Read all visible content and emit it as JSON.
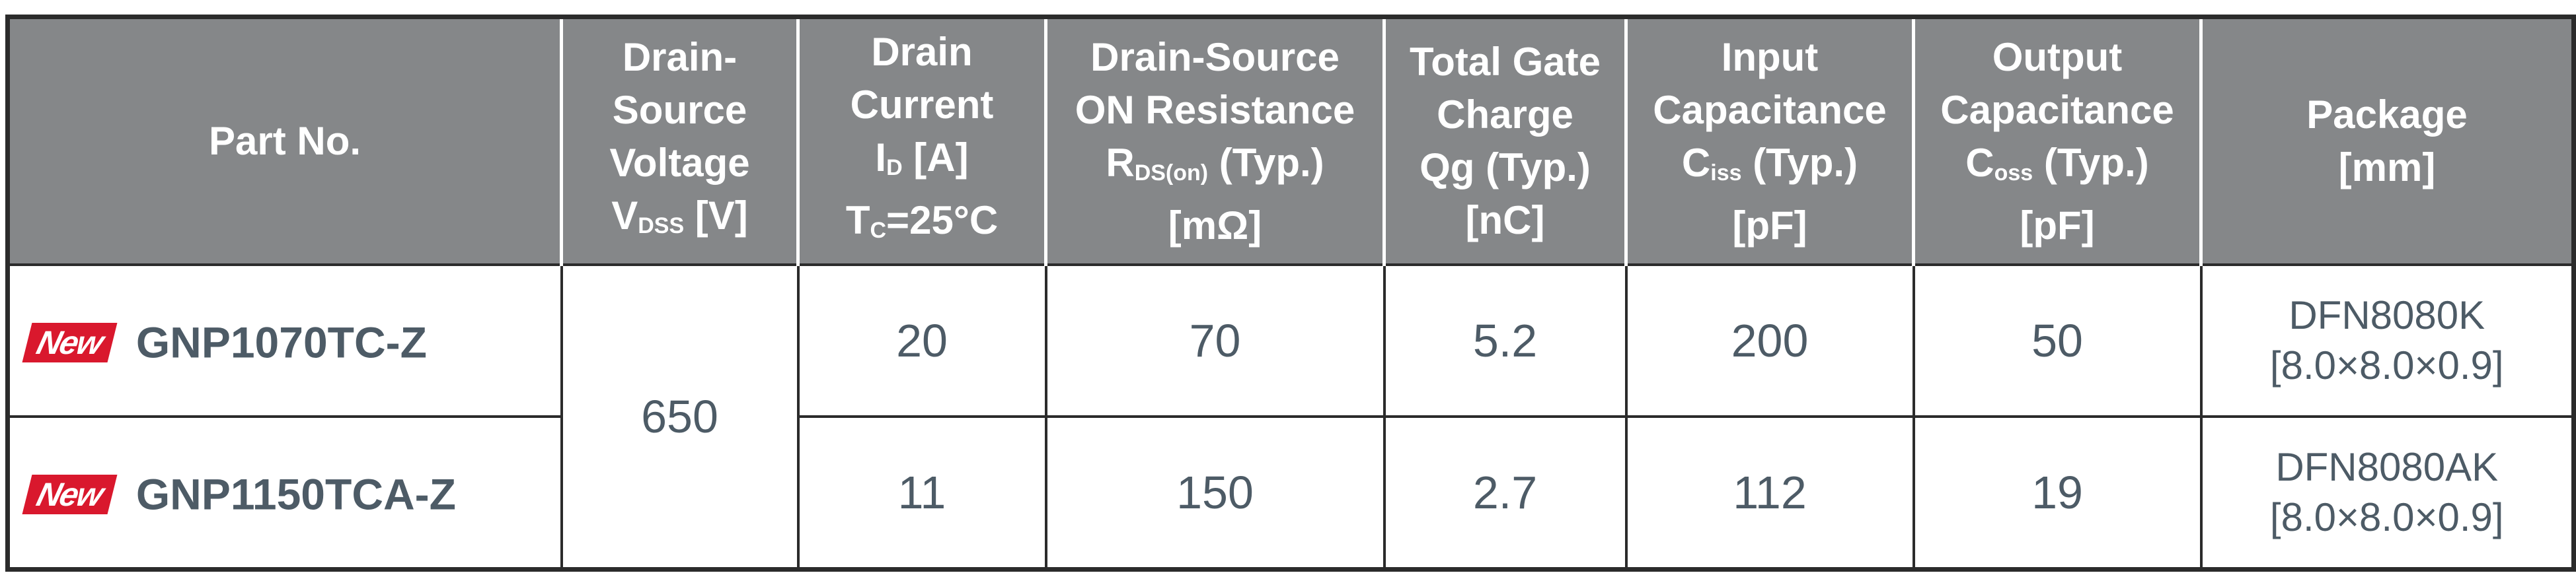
{
  "table": {
    "header": [
      [
        [
          {
            "text": "Part No."
          }
        ]
      ],
      [
        [
          {
            "text": "Drain-"
          }
        ],
        [
          {
            "text": "Source"
          }
        ],
        [
          {
            "text": "Voltage"
          }
        ],
        [
          {
            "text": "V"
          },
          {
            "text": "DSS",
            "sub": true
          },
          {
            "text": " [V]"
          }
        ]
      ],
      [
        [
          {
            "text": "Drain"
          }
        ],
        [
          {
            "text": "Current"
          }
        ],
        [
          {
            "text": "I"
          },
          {
            "text": "D",
            "sub": true
          },
          {
            "text": " [A]"
          }
        ],
        [
          {
            "text": "T"
          },
          {
            "text": "C",
            "sub": true
          },
          {
            "text": "=25°C"
          }
        ]
      ],
      [
        [
          {
            "text": "Drain-Source"
          }
        ],
        [
          {
            "text": "ON Resistance"
          }
        ],
        [
          {
            "text": "R"
          },
          {
            "text": "DS(on)",
            "sub": true
          },
          {
            "text": " (Typ.)"
          }
        ],
        [
          {
            "text": "[mΩ]"
          }
        ]
      ],
      [
        [
          {
            "text": "Total Gate"
          }
        ],
        [
          {
            "text": "Charge"
          }
        ],
        [
          {
            "text": "Qg (Typ.)"
          }
        ],
        [
          {
            "text": "[nC]"
          }
        ]
      ],
      [
        [
          {
            "text": "Input"
          }
        ],
        [
          {
            "text": "Capacitance"
          }
        ],
        [
          {
            "text": "C"
          },
          {
            "text": "iss",
            "sub": true
          },
          {
            "text": " (Typ.)"
          }
        ],
        [
          {
            "text": "[pF]"
          }
        ]
      ],
      [
        [
          {
            "text": "Output"
          }
        ],
        [
          {
            "text": "Capacitance"
          }
        ],
        [
          {
            "text": "C"
          },
          {
            "text": "oss",
            "sub": true
          },
          {
            "text": " (Typ.)"
          }
        ],
        [
          {
            "text": "[pF]"
          }
        ]
      ],
      [
        [
          {
            "text": "Package"
          }
        ],
        [
          {
            "text": "[mm]"
          }
        ]
      ]
    ],
    "voltage": 650,
    "rows": [
      {
        "badge": "New",
        "part_no": "GNP1070TC-Z",
        "drain_current": 20,
        "rds_on": 70,
        "qg": 5.2,
        "ciss": 200,
        "coss": 50,
        "package": [
          "DFN8080K",
          "[8.0×8.0×0.9]"
        ]
      },
      {
        "badge": "New",
        "part_no": "GNP1150TCA-Z",
        "drain_current": 11,
        "rds_on": 150,
        "qg": 2.7,
        "ciss": 112,
        "coss": 19,
        "package": [
          "DFN8080AK",
          "[8.0×8.0×0.9]"
        ]
      }
    ]
  }
}
